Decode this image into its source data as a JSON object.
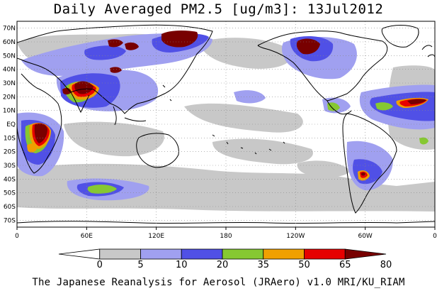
{
  "map": {
    "title": "Daily Averaged PM2.5 [ug/m3]: 13Jul2012",
    "lat_labels": [
      "70N",
      "60N",
      "50N",
      "40N",
      "30N",
      "20N",
      "10N",
      "EQ",
      "10S",
      "20S",
      "30S",
      "40S",
      "50S",
      "60S",
      "70S"
    ],
    "lon_labels": [
      "0",
      "60E",
      "120E",
      "180",
      "120W",
      "60W",
      "0"
    ],
    "footer": "The Japanese Reanalysis for Aerosol (JRAero) v1.0 MRI/KU_RIAM",
    "legend": {
      "bins": [
        {
          "label": "0",
          "color": "#ffffff"
        },
        {
          "label": "5",
          "color": "#c8c8c8"
        },
        {
          "label": "10",
          "color": "#a0a0f0"
        },
        {
          "label": "20",
          "color": "#5050e6"
        },
        {
          "label": "35",
          "color": "#86c832"
        },
        {
          "label": "50",
          "color": "#f0a000"
        },
        {
          "label": "65",
          "color": "#e60000"
        },
        {
          "label": "80",
          "color": "#780000"
        }
      ]
    },
    "colors": {
      "light": "#c8c8c8",
      "lavender": "#a0a0f0",
      "blue": "#5050e6",
      "green": "#86c832",
      "orange": "#f0a000",
      "red": "#e60000",
      "maroon": "#780000"
    }
  }
}
